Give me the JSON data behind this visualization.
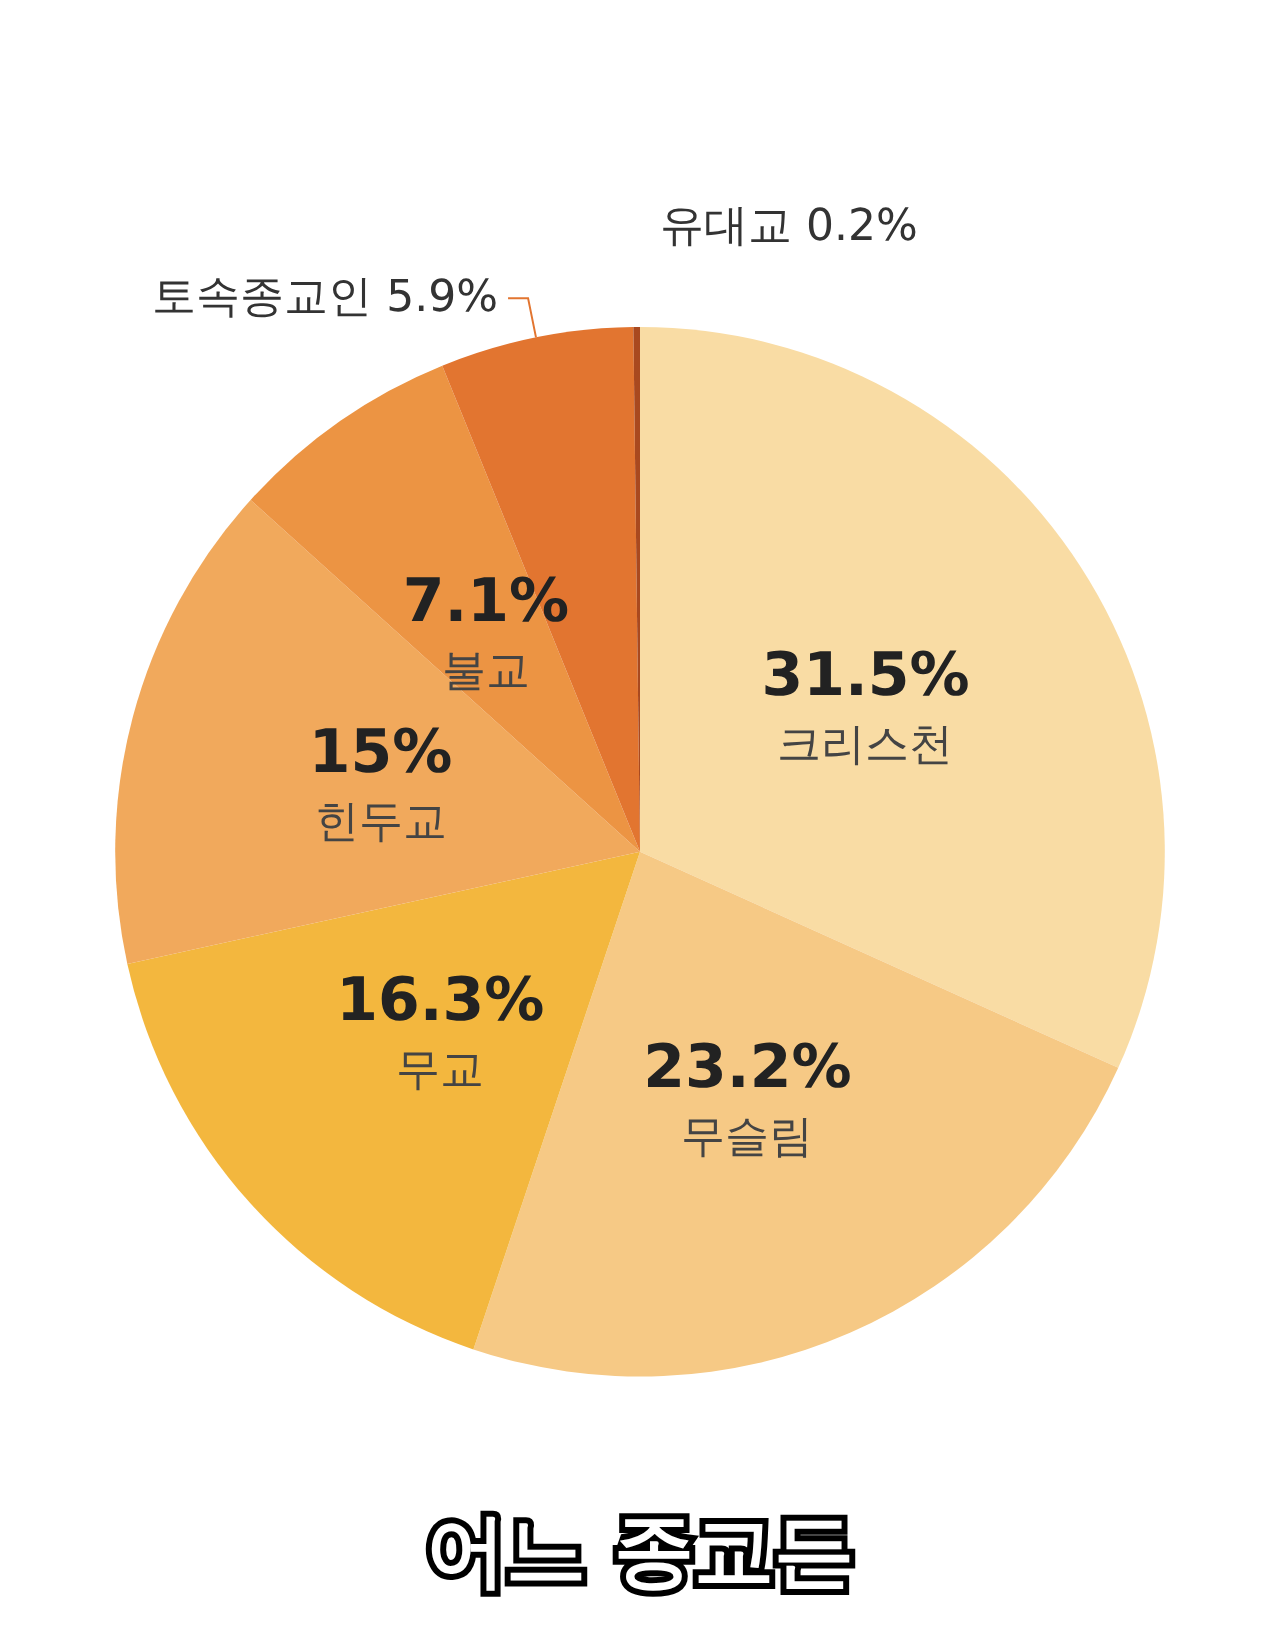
{
  "chart_data": {
    "type": "pie",
    "categories": [
      "크리스천",
      "무슬림",
      "무교",
      "힌두교",
      "불교",
      "토속종교인",
      "유대교"
    ],
    "values": [
      31.5,
      23.2,
      16.3,
      15,
      7.1,
      5.9,
      0.2
    ],
    "value_labels": [
      "31.5%",
      "23.2%",
      "16.3%",
      "15%",
      "7.1%",
      "5.9%",
      "0.2%"
    ],
    "colors": [
      "#f9dca4",
      "#f6c985",
      "#f3b73e",
      "#f1a95c",
      "#ec9443",
      "#e27530",
      "#a9491f"
    ],
    "annotations": [
      "어느 종교든"
    ],
    "legend": false
  }
}
